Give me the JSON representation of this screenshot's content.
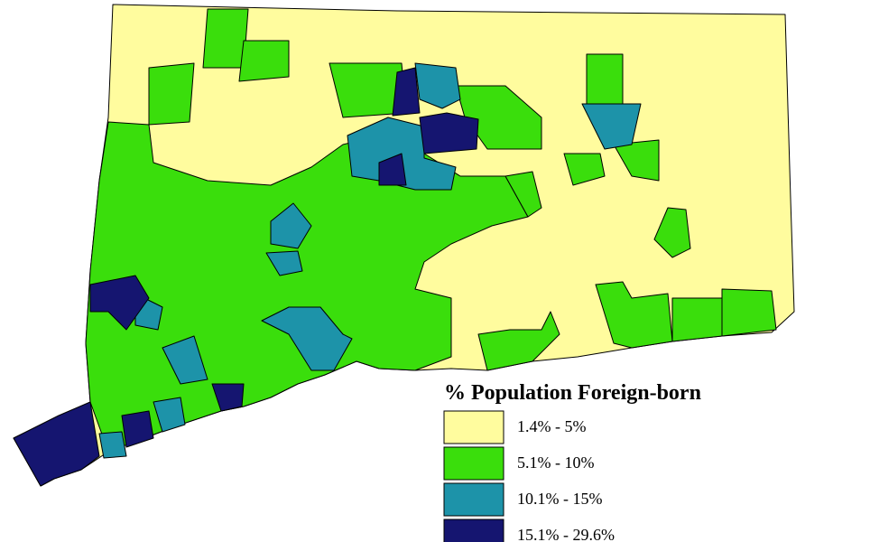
{
  "legend": {
    "title": "% Population Foreign-born",
    "items": [
      {
        "label": "1.4% - 5%",
        "color": "#fffc9e"
      },
      {
        "label": "5.1% - 10%",
        "color": "#3ade0c"
      },
      {
        "label": "10.1% - 15%",
        "color": "#1d93a9"
      },
      {
        "label": "15.1% - 29.6%",
        "color": "#151570"
      }
    ]
  }
}
